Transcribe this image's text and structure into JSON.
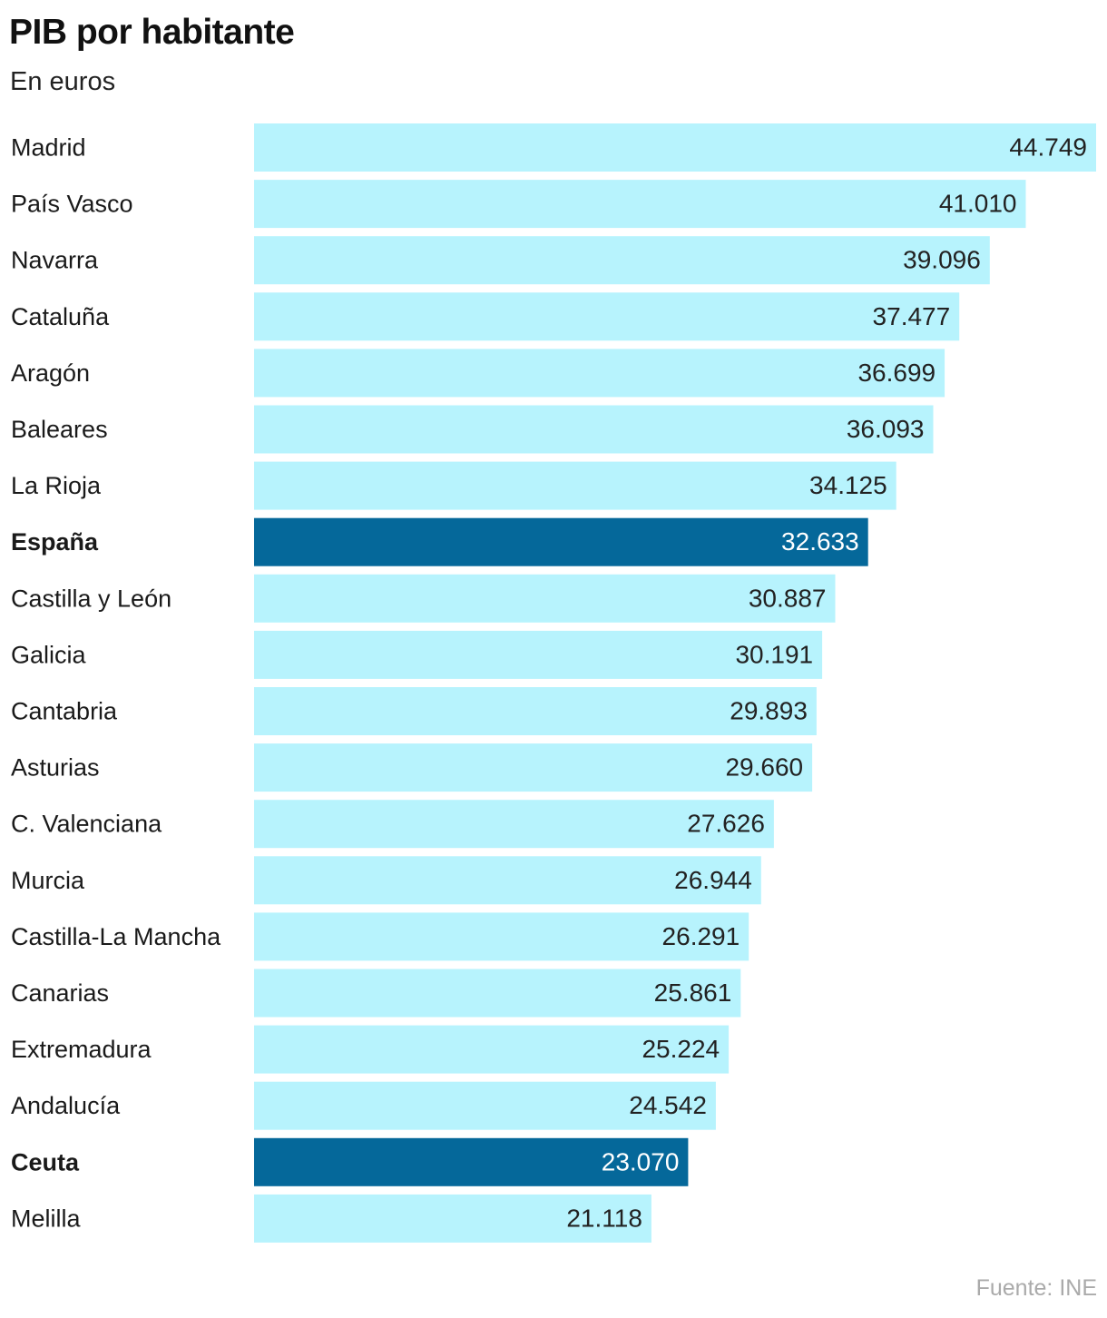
{
  "title": "PIB por habitante",
  "subtitle": "En euros",
  "source": "Fuente: INE",
  "colors": {
    "bar": "#b7f3fd",
    "bar_highlight": "#05689a",
    "value_text": "#222222",
    "value_text_highlight": "#ffffff",
    "label_text": "#1a1a1a"
  },
  "chart_data": {
    "type": "bar",
    "orientation": "horizontal",
    "title": "PIB por habitante",
    "subtitle": "En euros",
    "xlim": [
      0,
      44749
    ],
    "grid": false,
    "bars": [
      {
        "category": "Madrid",
        "value": 44749,
        "label": "44.749",
        "highlight": false
      },
      {
        "category": "País Vasco",
        "value": 41010,
        "label": "41.010",
        "highlight": false
      },
      {
        "category": "Navarra",
        "value": 39096,
        "label": "39.096",
        "highlight": false
      },
      {
        "category": "Cataluña",
        "value": 37477,
        "label": "37.477",
        "highlight": false
      },
      {
        "category": "Aragón",
        "value": 36699,
        "label": "36.699",
        "highlight": false
      },
      {
        "category": "Baleares",
        "value": 36093,
        "label": "36.093",
        "highlight": false
      },
      {
        "category": "La Rioja",
        "value": 34125,
        "label": "34.125",
        "highlight": false
      },
      {
        "category": "España",
        "value": 32633,
        "label": "32.633",
        "highlight": true
      },
      {
        "category": "Castilla y León",
        "value": 30887,
        "label": "30.887",
        "highlight": false
      },
      {
        "category": "Galicia",
        "value": 30191,
        "label": "30.191",
        "highlight": false
      },
      {
        "category": "Cantabria",
        "value": 29893,
        "label": "29.893",
        "highlight": false
      },
      {
        "category": "Asturias",
        "value": 29660,
        "label": "29.660",
        "highlight": false
      },
      {
        "category": "C. Valenciana",
        "value": 27626,
        "label": "27.626",
        "highlight": false
      },
      {
        "category": "Murcia",
        "value": 26944,
        "label": "26.944",
        "highlight": false
      },
      {
        "category": "Castilla-La Mancha",
        "value": 26291,
        "label": "26.291",
        "highlight": false
      },
      {
        "category": "Canarias",
        "value": 25861,
        "label": "25.861",
        "highlight": false
      },
      {
        "category": "Extremadura",
        "value": 25224,
        "label": "25.224",
        "highlight": false
      },
      {
        "category": "Andalucía",
        "value": 24542,
        "label": "24.542",
        "highlight": false
      },
      {
        "category": "Ceuta",
        "value": 23070,
        "label": "23.070",
        "highlight": true
      },
      {
        "category": "Melilla",
        "value": 21118,
        "label": "21.118",
        "highlight": false
      }
    ]
  }
}
